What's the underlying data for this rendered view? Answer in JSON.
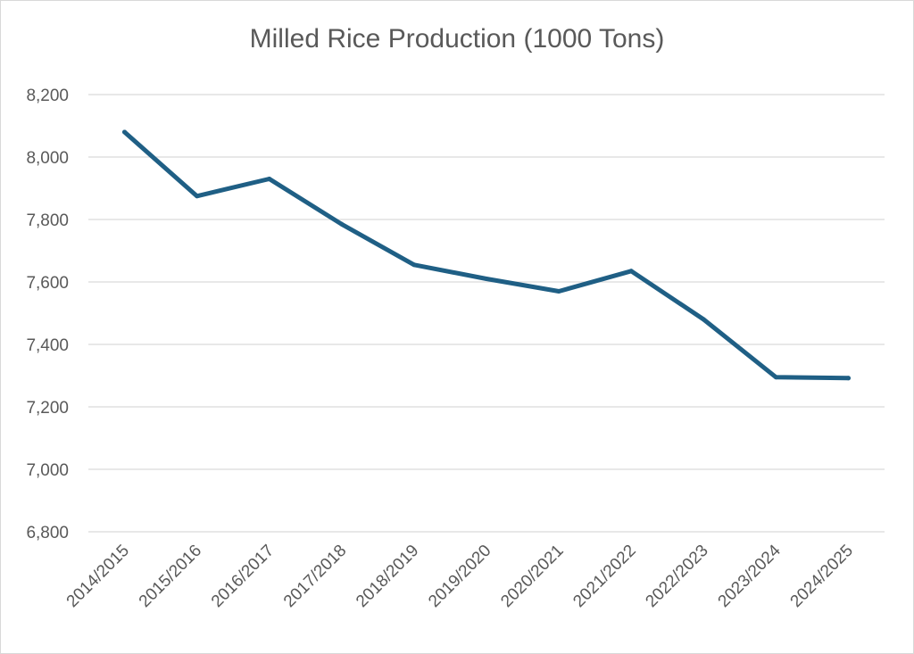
{
  "chart_data": {
    "type": "line",
    "title": "Milled Rice Production (1000 Tons)",
    "xlabel": "",
    "ylabel": "",
    "categories": [
      "2014/2015",
      "2015/2016",
      "2016/2017",
      "2017/2018",
      "2018/2019",
      "2019/2020",
      "2020/2021",
      "2021/2022",
      "2022/2023",
      "2023/2024",
      "2024/2025"
    ],
    "series": [
      {
        "values": [
          8080,
          7875,
          7930,
          7785,
          7655,
          7610,
          7570,
          7635,
          7480,
          7295,
          7292
        ]
      }
    ],
    "ylim": [
      6800,
      8200
    ],
    "yticks": [
      8200,
      8000,
      7800,
      7600,
      7400,
      7200,
      7000,
      6800
    ],
    "ytick_labels": [
      "8,200",
      "8,000",
      "7,800",
      "7,600",
      "7,400",
      "7,200",
      "7,000",
      "6,800"
    ],
    "grid": true,
    "legend": "none",
    "line_color": "#1f5f85",
    "grid_color": "#d9d9d9",
    "text_color": "#595959"
  }
}
